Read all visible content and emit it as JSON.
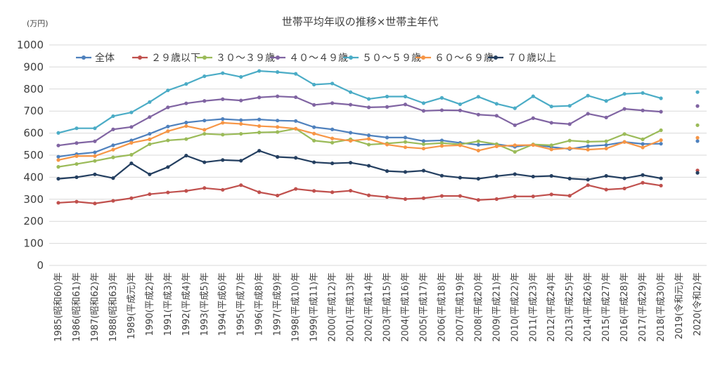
{
  "chart_data": {
    "type": "line",
    "title": "世帯平均年収の推移×世帯主年代",
    "ylabel": "(万円)",
    "xlabel": "",
    "ylim": [
      0,
      1000
    ],
    "yticks": [
      0,
      100,
      200,
      300,
      400,
      500,
      600,
      700,
      800,
      900,
      1000
    ],
    "grid": "horizontal",
    "legend": "top",
    "categories": [
      "1985(昭和60)年",
      "1986(昭和61)年",
      "1987(昭和62)年",
      "1988(昭和63)年",
      "1989(平成元)年",
      "1990(平成2)年",
      "1991(平成3)年",
      "1992(平成4)年",
      "1993(平成5)年",
      "1994(平成6)年",
      "1995(平成7)年",
      "1996(平成8)年",
      "1997(平成9)年",
      "1998(平成10)年",
      "1999(平成11)年",
      "2000(平成12)年",
      "2001(平成13)年",
      "2002(平成14)年",
      "2003(平成15)年",
      "2004(平成16)年",
      "2005(平成17)年",
      "2006(平成18)年",
      "2007(平成19)年",
      "2008(平成20)年",
      "2009(平成21)年",
      "2010(平成22)年",
      "2011(平成23)年",
      "2012(平成24)年",
      "2013(平成25)年",
      "2014(平成26)年",
      "2015(平成27)年",
      "2016(平成28)年",
      "2017(平成29)年",
      "2018(平成30)年",
      "2019(令和元)年",
      "2020(令和2)年"
    ],
    "series": [
      {
        "name": "全体",
        "color": "#4f81bd",
        "values": [
          493,
          505,
          513,
          545,
          567,
          597,
          630,
          648,
          657,
          664,
          659,
          662,
          657,
          655,
          627,
          617,
          602,
          590,
          580,
          580,
          564,
          567,
          556,
          547,
          550,
          538,
          548,
          537,
          528,
          541,
          546,
          560,
          551,
          552,
          null,
          564
        ],
        "line_break_before_last": true
      },
      {
        "name": "２９歳以下",
        "color": "#c0504d",
        "values": [
          284,
          289,
          281,
          293,
          305,
          323,
          331,
          338,
          351,
          343,
          364,
          332,
          317,
          347,
          338,
          332,
          339,
          318,
          310,
          301,
          305,
          315,
          315,
          297,
          301,
          313,
          313,
          322,
          316,
          364,
          344,
          349,
          375,
          362,
          null,
          431
        ],
        "line_break_before_last": true
      },
      {
        "name": "３０～３９歳",
        "color": "#9bbb59",
        "values": [
          447,
          460,
          474,
          490,
          502,
          550,
          567,
          573,
          597,
          593,
          597,
          603,
          605,
          620,
          566,
          557,
          572,
          548,
          553,
          560,
          550,
          555,
          549,
          563,
          550,
          515,
          549,
          545,
          566,
          561,
          563,
          596,
          572,
          613,
          null,
          636
        ],
        "line_break_before_last": true
      },
      {
        "name": "４０～４９歳",
        "color": "#8064a2",
        "values": [
          544,
          555,
          563,
          617,
          628,
          673,
          717,
          735,
          746,
          754,
          748,
          762,
          767,
          763,
          728,
          736,
          729,
          717,
          719,
          730,
          701,
          704,
          703,
          684,
          679,
          636,
          668,
          647,
          641,
          688,
          671,
          710,
          703,
          697,
          null,
          723
        ],
        "line_break_before_last": true
      },
      {
        "name": "５０～５９歳",
        "color": "#4bacc6",
        "values": [
          601,
          622,
          622,
          677,
          694,
          741,
          794,
          823,
          858,
          872,
          855,
          882,
          877,
          869,
          820,
          825,
          786,
          755,
          766,
          766,
          736,
          760,
          731,
          765,
          733,
          713,
          767,
          721,
          724,
          770,
          746,
          778,
          782,
          758,
          null,
          786
        ],
        "line_break_before_last": true
      },
      {
        "name": "６０～６９歳",
        "color": "#f79646",
        "values": [
          478,
          496,
          496,
          525,
          556,
          572,
          609,
          632,
          615,
          647,
          642,
          632,
          628,
          620,
          598,
          576,
          565,
          574,
          548,
          536,
          530,
          542,
          545,
          521,
          540,
          545,
          546,
          526,
          532,
          525,
          530,
          560,
          535,
          568,
          null,
          579
        ],
        "line_break_before_last": true
      },
      {
        "name": "７０歳以上",
        "color": "#243f60",
        "values": [
          393,
          400,
          413,
          396,
          463,
          413,
          446,
          498,
          468,
          478,
          475,
          520,
          492,
          488,
          468,
          463,
          466,
          452,
          428,
          424,
          430,
          407,
          398,
          393,
          405,
          414,
          403,
          406,
          394,
          389,
          406,
          395,
          410,
          395,
          null,
          420
        ],
        "line_break_before_last": true
      }
    ]
  }
}
